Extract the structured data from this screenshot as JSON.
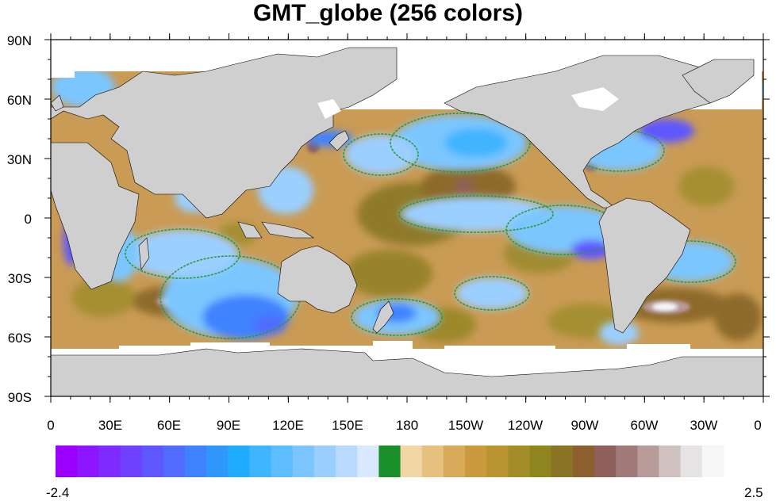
{
  "title": "GMT_globe (256 colors)",
  "lat_labels": [
    "90N",
    "60N",
    "30N",
    "0",
    "30S",
    "60S",
    "90S"
  ],
  "lon_labels": [
    "0",
    "30E",
    "60E",
    "90E",
    "120E",
    "150E",
    "180",
    "150W",
    "120W",
    "90W",
    "60W",
    "30W",
    "0"
  ],
  "colorbar": {
    "min_label": "-2.4",
    "max_label": "2.5",
    "colors": [
      "#9b00ff",
      "#8c16ff",
      "#7d2bff",
      "#6d41ff",
      "#5e57ff",
      "#4f6cff",
      "#3f82ff",
      "#3097ff",
      "#21adff",
      "#3fb4ff",
      "#5ebdff",
      "#7cc6ff",
      "#9bcfff",
      "#b9d9ff",
      "#d7e8ff",
      "#1b8f29",
      "#f2d6a6",
      "#e5c07f",
      "#d9aa59",
      "#cc9a3e",
      "#b99431",
      "#a38d28",
      "#8f851f",
      "#8a7324",
      "#8e5f2e",
      "#8f5f5c",
      "#a07a78",
      "#b89a99",
      "#d0c2c1",
      "#e5e3e3",
      "#f6f6f6"
    ]
  },
  "colors": {
    "land": "#cfcfcf",
    "ice": "#ffffff",
    "ocean_base": "#c99b55",
    "contour_line": "#2e9a36"
  }
}
